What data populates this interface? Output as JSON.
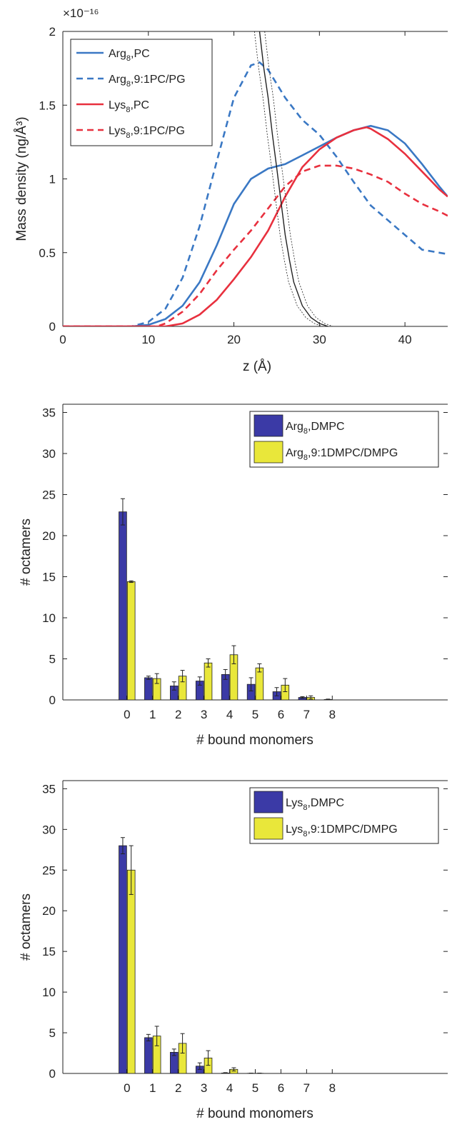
{
  "colors": {
    "arg_blue": "#3a78c4",
    "lys_red": "#e8303e",
    "bar_blue": "#3b3aa6",
    "bar_yellow": "#e9e73a",
    "membrane_black": "#222222"
  },
  "chart_data": [
    {
      "type": "line",
      "ylabel": "Mass density (ng/Å³)",
      "xlabel": "z (Å)",
      "y_exponent": "×10⁻¹⁶",
      "xlim": [
        0,
        45
      ],
      "ylim": [
        0,
        2
      ],
      "xticks": [
        "0",
        "10",
        "20",
        "30",
        "40"
      ],
      "yticks": [
        "0",
        "0.5",
        "1",
        "1.5",
        "2"
      ],
      "legend_position": "top-left",
      "legend": [
        "Arg8,PC",
        "Arg8,9:1PC/PG",
        "Lys8,PC",
        "Lys8,9:1PC/PG"
      ],
      "series": [
        {
          "name": "Arg8,PC",
          "style": "solid",
          "color": "#3a78c4",
          "x": [
            0,
            8,
            10,
            12,
            14,
            16,
            18,
            20,
            22,
            24,
            26,
            28,
            30,
            32,
            34,
            36,
            38,
            40,
            42,
            44,
            45
          ],
          "y": [
            0,
            0,
            0.01,
            0.05,
            0.14,
            0.3,
            0.55,
            0.83,
            1.0,
            1.07,
            1.1,
            1.16,
            1.22,
            1.28,
            1.33,
            1.36,
            1.33,
            1.24,
            1.1,
            0.95,
            0.88
          ]
        },
        {
          "name": "Arg8,9:1PC/PG",
          "style": "dashed",
          "color": "#3a78c4",
          "x": [
            0,
            8,
            10,
            12,
            14,
            16,
            18,
            20,
            22,
            23,
            24,
            26,
            28,
            30,
            32,
            34,
            36,
            38,
            40,
            42,
            44,
            45
          ],
          "y": [
            0,
            0,
            0.03,
            0.12,
            0.33,
            0.68,
            1.12,
            1.55,
            1.77,
            1.79,
            1.74,
            1.55,
            1.4,
            1.3,
            1.15,
            0.98,
            0.82,
            0.72,
            0.62,
            0.52,
            0.5,
            0.49
          ]
        },
        {
          "name": "Lys8,PC",
          "style": "solid",
          "color": "#e8303e",
          "x": [
            0,
            12,
            14,
            16,
            18,
            20,
            22,
            24,
            26,
            28,
            30,
            32,
            34,
            35.5,
            36,
            38,
            40,
            42,
            44,
            45
          ],
          "y": [
            0,
            0,
            0.02,
            0.08,
            0.18,
            0.32,
            0.47,
            0.65,
            0.88,
            1.08,
            1.2,
            1.28,
            1.33,
            1.35,
            1.34,
            1.27,
            1.17,
            1.05,
            0.93,
            0.88
          ]
        },
        {
          "name": "Lys8,9:1PC/PG",
          "style": "dashed",
          "color": "#e8303e",
          "x": [
            0,
            11,
            12,
            14,
            16,
            18,
            20,
            22,
            24,
            26,
            28,
            30,
            32,
            34,
            36,
            38,
            40,
            42,
            44,
            45
          ],
          "y": [
            0,
            0,
            0.02,
            0.1,
            0.22,
            0.38,
            0.52,
            0.65,
            0.8,
            0.95,
            1.05,
            1.09,
            1.09,
            1.07,
            1.03,
            0.98,
            0.9,
            0.83,
            0.78,
            0.75
          ]
        },
        {
          "name": "",
          "style": "solid",
          "color": "#222222",
          "x": [
            23,
            23.5,
            24,
            24.5,
            25,
            25.5,
            26,
            26.5,
            27,
            28,
            29,
            30,
            31
          ],
          "y": [
            2.0,
            1.75,
            1.55,
            1.3,
            1.08,
            0.85,
            0.62,
            0.45,
            0.3,
            0.14,
            0.06,
            0.02,
            0
          ]
        }
      ]
    },
    {
      "type": "bar",
      "ylabel": "# octamers",
      "xlabel": "# bound monomers",
      "categories": [
        "0",
        "1",
        "2",
        "3",
        "4",
        "5",
        "6",
        "7",
        "8"
      ],
      "xlim": [
        -2.5,
        12.5
      ],
      "ylim": [
        0,
        36
      ],
      "yticks": [
        "0",
        "5",
        "10",
        "15",
        "20",
        "25",
        "30",
        "35"
      ],
      "legend_position": "top-right",
      "series": [
        {
          "name": "Arg8,DMPC",
          "color": "#3b3aa6",
          "values": [
            22.9,
            2.7,
            1.7,
            2.3,
            3.1,
            1.9,
            1.0,
            0.3,
            0.05
          ],
          "errors": [
            1.6,
            0.2,
            0.5,
            0.5,
            0.6,
            0.8,
            0.5,
            0.1,
            0.05
          ]
        },
        {
          "name": "Arg8,9:1DMPC/DMPG",
          "color": "#e9e73a",
          "values": [
            14.4,
            2.6,
            2.9,
            4.5,
            5.5,
            3.9,
            1.8,
            0.3,
            0
          ],
          "errors": [
            0.1,
            0.6,
            0.7,
            0.5,
            1.1,
            0.5,
            0.8,
            0.2,
            0
          ]
        }
      ]
    },
    {
      "type": "bar",
      "ylabel": "# octamers",
      "xlabel": "# bound monomers",
      "categories": [
        "0",
        "1",
        "2",
        "3",
        "4",
        "5",
        "6",
        "7",
        "8"
      ],
      "xlim": [
        -2.5,
        12.5
      ],
      "ylim": [
        0,
        36
      ],
      "yticks": [
        "0",
        "5",
        "10",
        "15",
        "20",
        "25",
        "30",
        "35"
      ],
      "legend_position": "top-right",
      "series": [
        {
          "name": "Lys8,DMPC",
          "color": "#3b3aa6",
          "values": [
            28.0,
            4.4,
            2.6,
            0.9,
            0.05,
            0.02,
            0,
            0,
            0
          ],
          "errors": [
            1.0,
            0.4,
            0.4,
            0.4,
            0.05,
            0.02,
            0,
            0,
            0
          ]
        },
        {
          "name": "Lys8,9:1DMPC/DMPG",
          "color": "#e9e73a",
          "values": [
            25.0,
            4.6,
            3.7,
            1.9,
            0.5,
            0.02,
            0,
            0,
            0
          ],
          "errors": [
            3.0,
            1.2,
            1.2,
            0.9,
            0.2,
            0.02,
            0,
            0,
            0
          ]
        }
      ]
    }
  ]
}
